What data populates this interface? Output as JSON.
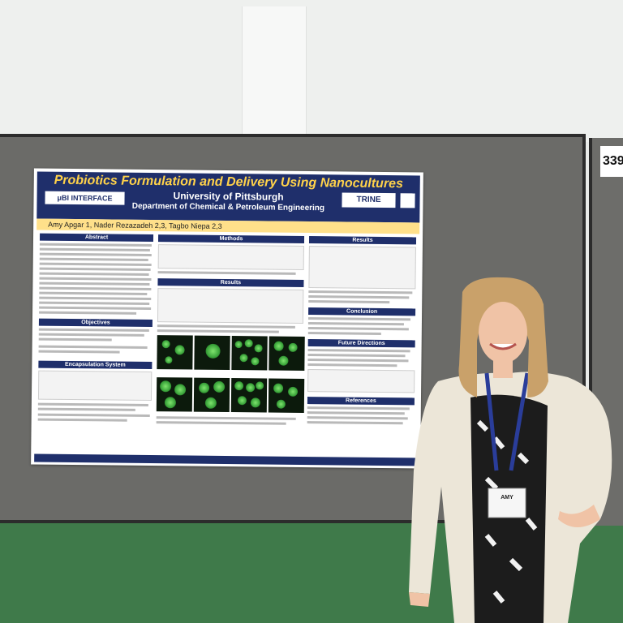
{
  "booth": {
    "number": "339"
  },
  "poster": {
    "title": "Probiotics Formulation and Delivery Using Nanocultures",
    "university": "University of Pittsburgh",
    "department": "Department of Chemical & Petroleum Engineering",
    "logo_left": "μBI INTERFACE",
    "logo_right": "TRINE",
    "authors": "Amy Apgar 1, Nader Rezazadeh 2,3, Tagbo Niepa 2,3",
    "sections": {
      "abstract": "Abstract",
      "objectives": "Objectives",
      "encapsulation": "Encapsulation System",
      "methods": "Methods",
      "results_mid": "Results",
      "results_right": "Results",
      "conclusion": "Conclusion",
      "future": "Future Directions",
      "references": "References"
    }
  },
  "badge": {
    "name": "AMY"
  }
}
